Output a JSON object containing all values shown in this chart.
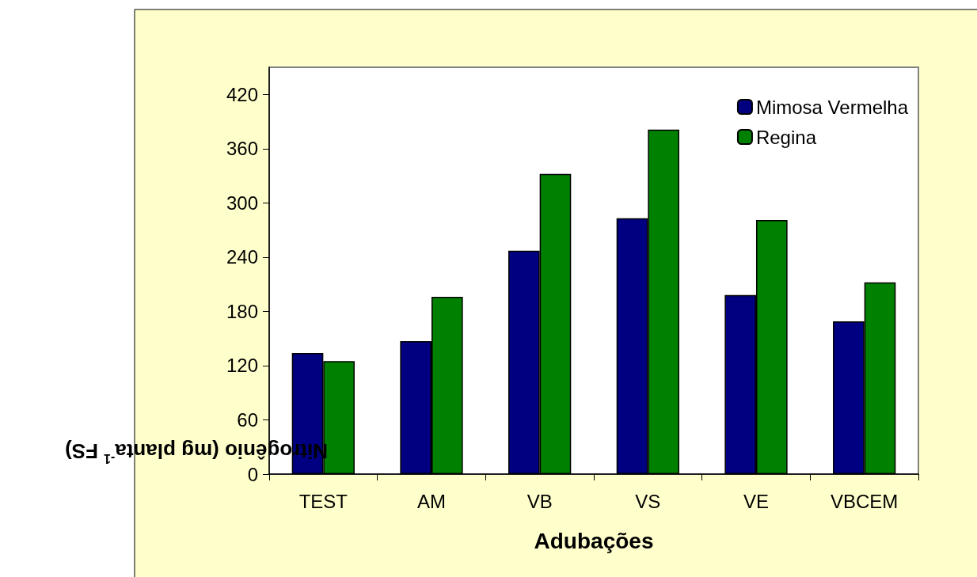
{
  "chart_data": {
    "type": "bar",
    "xlabel": "Adubações",
    "ylabel": "Nitrogênio (mg planta$^{-1}$ FS)",
    "categories": [
      "TEST",
      "AM",
      "VB",
      "VS",
      "VE",
      "VBCEM"
    ],
    "series": [
      {
        "name": "Mimosa Vermelha",
        "color": "#000080",
        "values": [
          134,
          147,
          247,
          283,
          198,
          169
        ]
      },
      {
        "name": "Regina",
        "color": "#008000",
        "values": [
          125,
          196,
          332,
          381,
          281,
          212
        ]
      }
    ],
    "ylim": [
      0,
      450
    ],
    "yticks": [
      0,
      60,
      120,
      180,
      240,
      300,
      360,
      420
    ],
    "grid": false,
    "legend": "top right"
  }
}
